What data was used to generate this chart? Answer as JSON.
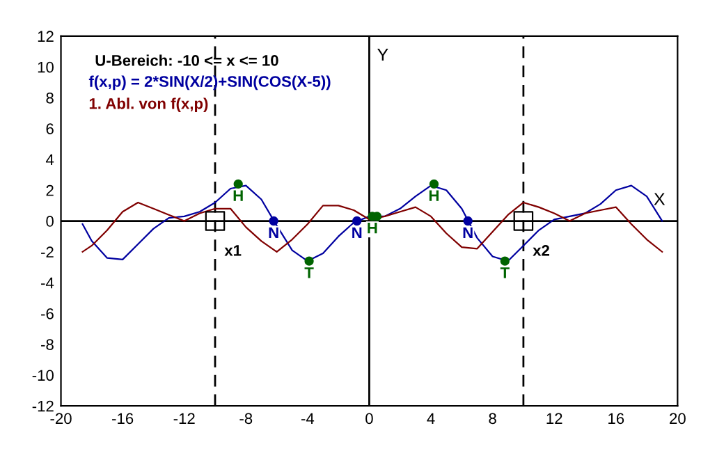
{
  "chart_data": {
    "type": "line",
    "xlabel": "X",
    "ylabel": "Y",
    "xlim": [
      -20,
      20
    ],
    "ylim": [
      -12,
      12
    ],
    "xticks": [
      -20,
      -16,
      -12,
      -8,
      -4,
      0,
      4,
      8,
      12,
      16,
      20
    ],
    "yticks": [
      -12,
      -10,
      -8,
      -6,
      -4,
      -2,
      0,
      2,
      4,
      6,
      8,
      10,
      12
    ],
    "grid": false,
    "legend": "top left",
    "series": [
      {
        "name": "f(x,p) = 2*SIN(X/2)+SIN(COS(X-5))",
        "color": "#0000a0",
        "x": [
          -18.6,
          -18,
          -17,
          -16,
          -15,
          -14,
          -13,
          -12,
          -11,
          -10,
          -9,
          -8,
          -7,
          -6,
          -5,
          -4,
          -3,
          -2,
          -1,
          0,
          1,
          2,
          3,
          4,
          5,
          6,
          7,
          8,
          9,
          10,
          11,
          12,
          13,
          14,
          15,
          16,
          17,
          18,
          19
        ],
        "values": [
          -0.2,
          -1.3,
          -2.4,
          -2.5,
          -1.5,
          -0.5,
          0.2,
          0.3,
          0.6,
          1.2,
          2.1,
          2.3,
          1.4,
          -0.3,
          -1.9,
          -2.6,
          -2.1,
          -1.0,
          -0.1,
          0.3,
          0.3,
          0.8,
          1.6,
          2.3,
          2.0,
          0.8,
          -1.1,
          -2.3,
          -2.6,
          -1.6,
          -0.6,
          0.1,
          0.3,
          0.5,
          1.1,
          2.0,
          2.3,
          1.6,
          0.0
        ]
      },
      {
        "name": "1. Abl. von f(x,p)",
        "color": "#800000",
        "x": [
          -18.6,
          -18,
          -17,
          -16,
          -15,
          -14,
          -13,
          -12,
          -11,
          -10,
          -9,
          -8,
          -7,
          -6,
          -5,
          -4,
          -3,
          -2,
          -1,
          0,
          1,
          2,
          3,
          4,
          5,
          6,
          7,
          8,
          9,
          10,
          11,
          12,
          13,
          14,
          15,
          16,
          17,
          18,
          19
        ],
        "values": [
          -2.0,
          -1.6,
          -0.6,
          0.6,
          1.2,
          0.8,
          0.4,
          0.0,
          0.5,
          0.8,
          0.8,
          -0.4,
          -1.3,
          -2.0,
          -1.2,
          -0.2,
          1.0,
          1.0,
          0.7,
          0.1,
          0.3,
          0.6,
          0.9,
          0.3,
          -0.8,
          -1.7,
          -1.8,
          -0.7,
          0.4,
          1.2,
          0.9,
          0.5,
          0.0,
          0.5,
          0.7,
          0.9,
          -0.2,
          -1.2,
          -2.0
        ]
      },
      {
        "type": "scatter",
        "marker": "circle",
        "color": "#006400",
        "x": [
          -8.5,
          -3.9,
          0.2,
          0.5,
          4.2,
          8.8
        ],
        "values": [
          2.4,
          -2.6,
          0.3,
          0.3,
          2.4,
          -2.6
        ]
      },
      {
        "type": "scatter",
        "marker": "circle",
        "color": "#0000a0",
        "x": [
          -6.2,
          -0.8,
          6.4
        ],
        "values": [
          0,
          0,
          0
        ]
      },
      {
        "type": "scatter",
        "marker": "square",
        "color": "#000000",
        "x": [
          -10,
          10
        ],
        "values": [
          0,
          0
        ]
      }
    ],
    "ref_lines": [
      {
        "axis": "y",
        "value": 0,
        "color": "#000000",
        "line_style": "solid"
      },
      {
        "axis": "x",
        "value": 0,
        "color": "#000000",
        "line_style": "solid"
      },
      {
        "axis": "x",
        "value": -10,
        "label": "x1",
        "color": "#000000",
        "line_style": "dashed"
      },
      {
        "axis": "x",
        "value": 10,
        "label": "x2",
        "color": "#000000",
        "line_style": "dashed"
      }
    ],
    "annotations": [
      "U-Bereich: -10 <= x <= 10",
      {
        "text": "H",
        "x": -8.5,
        "y": 2.4
      },
      {
        "text": "T",
        "x": -3.9,
        "y": -2.6
      },
      {
        "text": "H",
        "x": 0.2,
        "y": 0.3
      },
      {
        "text": "H",
        "x": 4.2,
        "y": 2.4
      },
      {
        "text": "T",
        "x": 8.8,
        "y": -2.6
      },
      {
        "text": "N",
        "x": -6.2,
        "y": 0
      },
      {
        "text": "N",
        "x": -0.8,
        "y": 0
      },
      {
        "text": "N",
        "x": 6.4,
        "y": 0
      }
    ]
  }
}
